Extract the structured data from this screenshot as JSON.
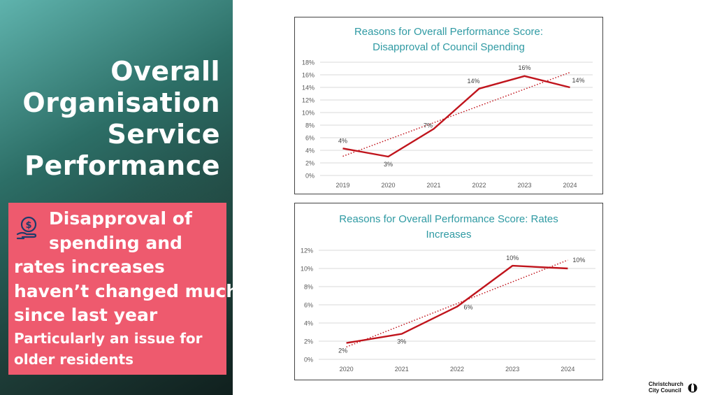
{
  "slide": {
    "title_lines": [
      "Overall",
      "Organisation",
      "Service",
      "Performance"
    ],
    "callout_lines": [
      "Disapproval of",
      "spending and",
      "rates increases",
      "haven’t changed much",
      "since last year"
    ],
    "callout_sub_lines": [
      "Particularly an issue for",
      "older residents"
    ],
    "callout_icon": "money-hand-icon",
    "logo_lines": [
      "Christchurch",
      "City Council"
    ]
  },
  "colors": {
    "accent_pink": "#ee5a6e",
    "title_teal": "#2f9aa3",
    "series_red": "#c0141c"
  },
  "chart_data": [
    {
      "type": "line",
      "title_lines": [
        "Reasons for Overall Performance Score:",
        "Disapproval of Council Spending"
      ],
      "categories": [
        "2019",
        "2020",
        "2021",
        "2022",
        "2023",
        "2024"
      ],
      "values": [
        4.3,
        3.0,
        7.4,
        13.8,
        15.8,
        14.0
      ],
      "data_labels": [
        "4%",
        "3%",
        "7%",
        "14%",
        "16%",
        "14%"
      ],
      "trendline": true,
      "ylim": [
        0,
        18
      ],
      "yticks": [
        0,
        2,
        4,
        6,
        8,
        10,
        12,
        14,
        16,
        18
      ],
      "ytick_labels": [
        "0%",
        "2%",
        "4%",
        "6%",
        "8%",
        "10%",
        "12%",
        "14%",
        "16%",
        "18%"
      ],
      "grid": true,
      "legend": "none"
    },
    {
      "type": "line",
      "title_lines": [
        "Reasons for Overall Performance Score: Rates",
        "Increases"
      ],
      "categories": [
        "2020",
        "2021",
        "2022",
        "2023",
        "2024"
      ],
      "values": [
        1.8,
        2.8,
        5.8,
        10.3,
        10.0
      ],
      "data_labels": [
        "2%",
        "3%",
        "6%",
        "10%",
        "10%"
      ],
      "trendline": true,
      "ylim": [
        0,
        12
      ],
      "yticks": [
        0,
        2,
        4,
        6,
        8,
        10,
        12
      ],
      "ytick_labels": [
        "0%",
        "2%",
        "4%",
        "6%",
        "8%",
        "10%",
        "12%"
      ],
      "grid": true,
      "legend": "none"
    }
  ]
}
